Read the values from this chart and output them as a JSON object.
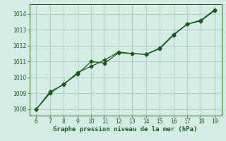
{
  "line1_x": [
    6,
    7,
    8,
    9,
    10,
    11,
    12,
    13,
    14,
    15,
    16,
    17,
    18,
    19
  ],
  "line1_y": [
    1008.0,
    1009.0,
    1009.6,
    1010.2,
    1011.0,
    1010.9,
    1011.55,
    1011.5,
    1011.45,
    1011.8,
    1012.65,
    1013.35,
    1013.55,
    1014.2
  ],
  "line2_x": [
    6,
    7,
    8,
    9,
    10,
    11,
    12,
    13,
    14,
    15,
    16,
    17,
    18,
    19
  ],
  "line2_y": [
    1008.0,
    1009.1,
    1009.55,
    1010.3,
    1010.7,
    1011.1,
    1011.6,
    1011.5,
    1011.45,
    1011.85,
    1012.7,
    1013.35,
    1013.6,
    1014.25
  ],
  "line_color": "#1a5c1a",
  "marker": "D",
  "markersize": 2.5,
  "linewidth": 0.9,
  "xlabel": "Graphe pression niveau de la mer (hPa)",
  "xlabel_color": "#1a5c1a",
  "xlabel_fontsize": 6.5,
  "xlim": [
    5.5,
    19.5
  ],
  "ylim": [
    1007.6,
    1014.6
  ],
  "xticks": [
    6,
    7,
    8,
    9,
    10,
    11,
    12,
    13,
    14,
    15,
    16,
    17,
    18,
    19
  ],
  "yticks": [
    1008,
    1009,
    1010,
    1011,
    1012,
    1013,
    1014
  ],
  "tick_fontsize": 5.5,
  "bg_color": "#d4ece5",
  "grid_color": "#adc9c1",
  "axes_color": "#1a5c1a",
  "fig_width": 3.2,
  "fig_height": 2.0,
  "dpi": 100
}
